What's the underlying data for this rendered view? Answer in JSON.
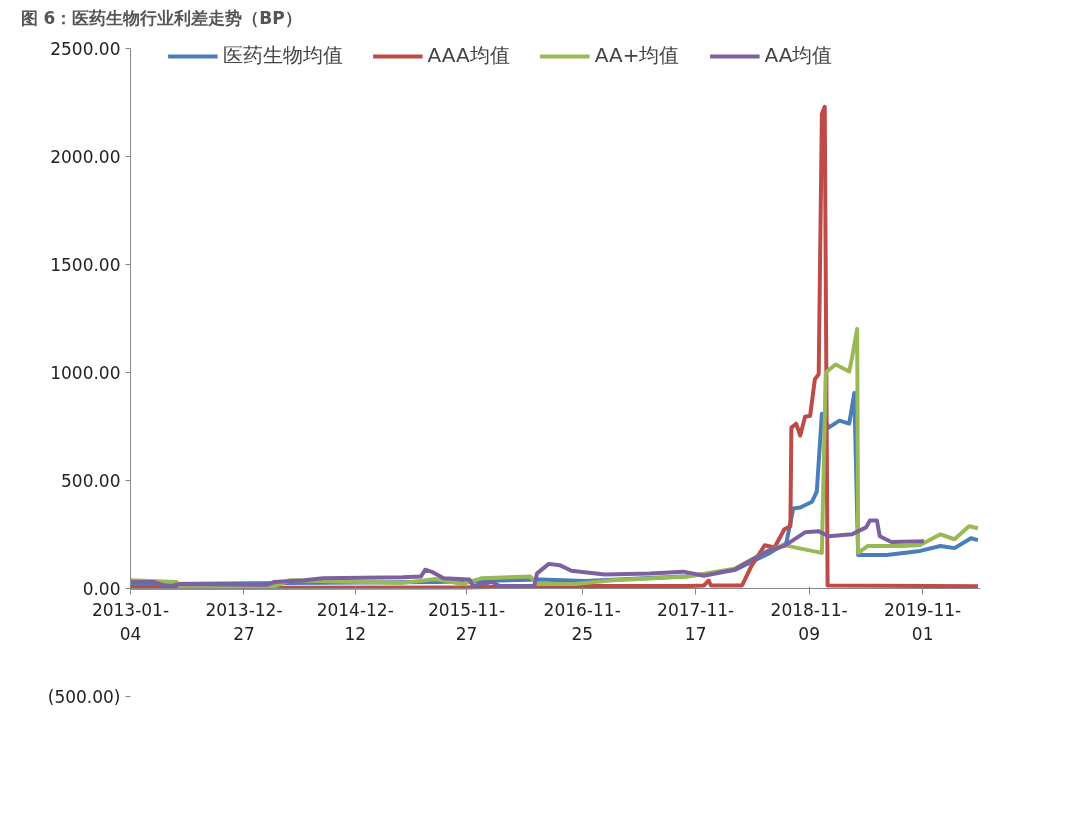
{
  "chart_data": {
    "type": "line",
    "title": "图 6：医药生物行业利差走势（BP）",
    "xlim": [
      "2013-01-04",
      "2020-05-01"
    ],
    "xticks": [
      {
        "value": "2013-01-04",
        "label": "2013-01-04"
      },
      {
        "value": "2013-12-27",
        "label": "2013-12-27"
      },
      {
        "value": "2014-12-12",
        "label": "2014-12-12"
      },
      {
        "value": "2015-11-27",
        "label": "2015-11-27"
      },
      {
        "value": "2016-11-25",
        "label": "2016-11-25"
      },
      {
        "value": "2017-11-17",
        "label": "2017-11-17"
      },
      {
        "value": "2018-11-09",
        "label": "2018-11-09"
      },
      {
        "value": "2019-11-01",
        "label": "2019-11-01"
      }
    ],
    "ylim": [
      -500,
      2500
    ],
    "yticks": [
      {
        "value": -500,
        "label": "(500.00)"
      },
      {
        "value": 0,
        "label": "0.00"
      },
      {
        "value": 500,
        "label": "500.00"
      },
      {
        "value": 1000,
        "label": "1000.00"
      },
      {
        "value": 1500,
        "label": "1500.00"
      },
      {
        "value": 2000,
        "label": "2000.00"
      },
      {
        "value": 2500,
        "label": "2500.00"
      }
    ],
    "grid": false,
    "legend": "top",
    "marker": "none",
    "line_style": "solid",
    "series": [
      {
        "name": "医药生物均值",
        "color": "#4a7ebb",
        "x": [
          "2013-01-04",
          "2014-05-22",
          "2015-08-29",
          "2016-07-18",
          "2016-12-04",
          "2017-10-09",
          "2018-03-19",
          "2018-07-02",
          "2018-08-29",
          "2018-09-20",
          "2018-10-12",
          "2018-11-18",
          "2018-12-03",
          "2018-12-19",
          "2019-01-09",
          "2019-02-12",
          "2019-03-15",
          "2019-03-31",
          "2019-04-12",
          "2019-07-11",
          "2019-10-24",
          "2019-12-27",
          "2020-02-09",
          "2020-04-01",
          "2020-04-23"
        ],
        "values": [
          20,
          25,
          30,
          42,
          35,
          55,
          85,
          160,
          210,
          370,
          375,
          402,
          448,
          809,
          745,
          777,
          763,
          905,
          155,
          155,
          174,
          197,
          187,
          233,
          224
        ]
      },
      {
        "name": "AAA均值",
        "color": "#be4b48",
        "x": [
          "2013-01-04",
          "2015-11-14",
          "2016-11-03",
          "2017-10-25",
          "2017-12-13",
          "2017-12-28",
          "2018-01-04",
          "2018-04-12",
          "2018-05-10",
          "2018-06-22",
          "2018-07-23",
          "2018-08-23",
          "2018-09-11",
          "2018-09-14",
          "2018-09-29",
          "2018-10-12",
          "2018-10-27",
          "2018-11-12",
          "2018-11-27",
          "2018-12-09",
          "2018-12-19",
          "2018-12-28",
          "2019-01-06",
          "2020-04-23"
        ],
        "values": [
          3,
          5,
          12,
          12,
          14,
          37,
          14,
          14,
          100,
          200,
          190,
          274,
          288,
          745,
          763,
          708,
          795,
          800,
          969,
          992,
          2198,
          2230,
          14,
          10
        ]
      },
      {
        "name": "AA+均值",
        "color": "#98b954",
        "x": [
          "2013-01-04",
          "2013-05-29",
          "2013-06-07",
          "2014-03-31",
          "2014-05-19",
          "2015-05-10",
          "2015-08-23",
          "2015-11-14",
          "2016-01-12",
          "2016-06-14",
          "2016-07-06",
          "2016-11-03",
          "2017-03-01",
          "2017-10-25",
          "2018-03-19",
          "2018-05-10",
          "2018-07-02",
          "2018-08-23",
          "2018-10-06",
          "2018-12-19",
          "2018-12-31",
          "2019-01-31",
          "2019-03-15",
          "2019-03-24",
          "2019-04-09",
          "2019-04-12",
          "2019-05-13",
          "2019-09-01",
          "2019-10-24",
          "2019-12-27",
          "2020-02-09",
          "2020-03-26",
          "2020-04-23"
        ],
        "values": [
          38,
          30,
          9,
          9,
          38,
          26,
          44,
          21,
          47,
          56,
          21,
          21,
          38,
          56,
          91,
          133,
          174,
          201,
          187,
          165,
          1000,
          1037,
          1005,
          1069,
          1202,
          165,
          197,
          197,
          201,
          251,
          228,
          288,
          279
        ]
      },
      {
        "name": "AA均值",
        "color": "#7d60a0",
        "x": [
          "2013-01-04",
          "2013-03-19",
          "2013-05-04",
          "2013-06-07",
          "2014-03-09",
          "2014-03-31",
          "2014-07-05",
          "2014-09-01",
          "2015-05-10",
          "2015-07-07",
          "2015-07-20",
          "2015-08-10",
          "2015-09-16",
          "2015-12-06",
          "2015-12-18",
          "2016-02-15",
          "2016-03-10",
          "2016-06-27",
          "2016-07-06",
          "2016-08-12",
          "2016-09-15",
          "2016-10-22",
          "2017-02-04",
          "2017-06-26",
          "2017-10-09",
          "2017-12-13",
          "2018-03-19",
          "2018-07-02",
          "2018-08-23",
          "2018-10-27",
          "2018-12-09",
          "2019-01-09",
          "2019-03-24",
          "2019-05-07",
          "2019-05-19",
          "2019-06-10",
          "2019-06-19",
          "2019-07-26",
          "2019-11-05"
        ],
        "values": [
          30,
          30,
          7,
          21,
          17,
          30,
          38,
          47,
          52,
          56,
          87,
          77,
          47,
          42,
          12,
          30,
          12,
          12,
          70,
          114,
          108,
          82,
          65,
          70,
          78,
          59,
          87,
          174,
          197,
          260,
          265,
          242,
          251,
          283,
          315,
          315,
          242,
          215,
          219
        ]
      }
    ]
  }
}
